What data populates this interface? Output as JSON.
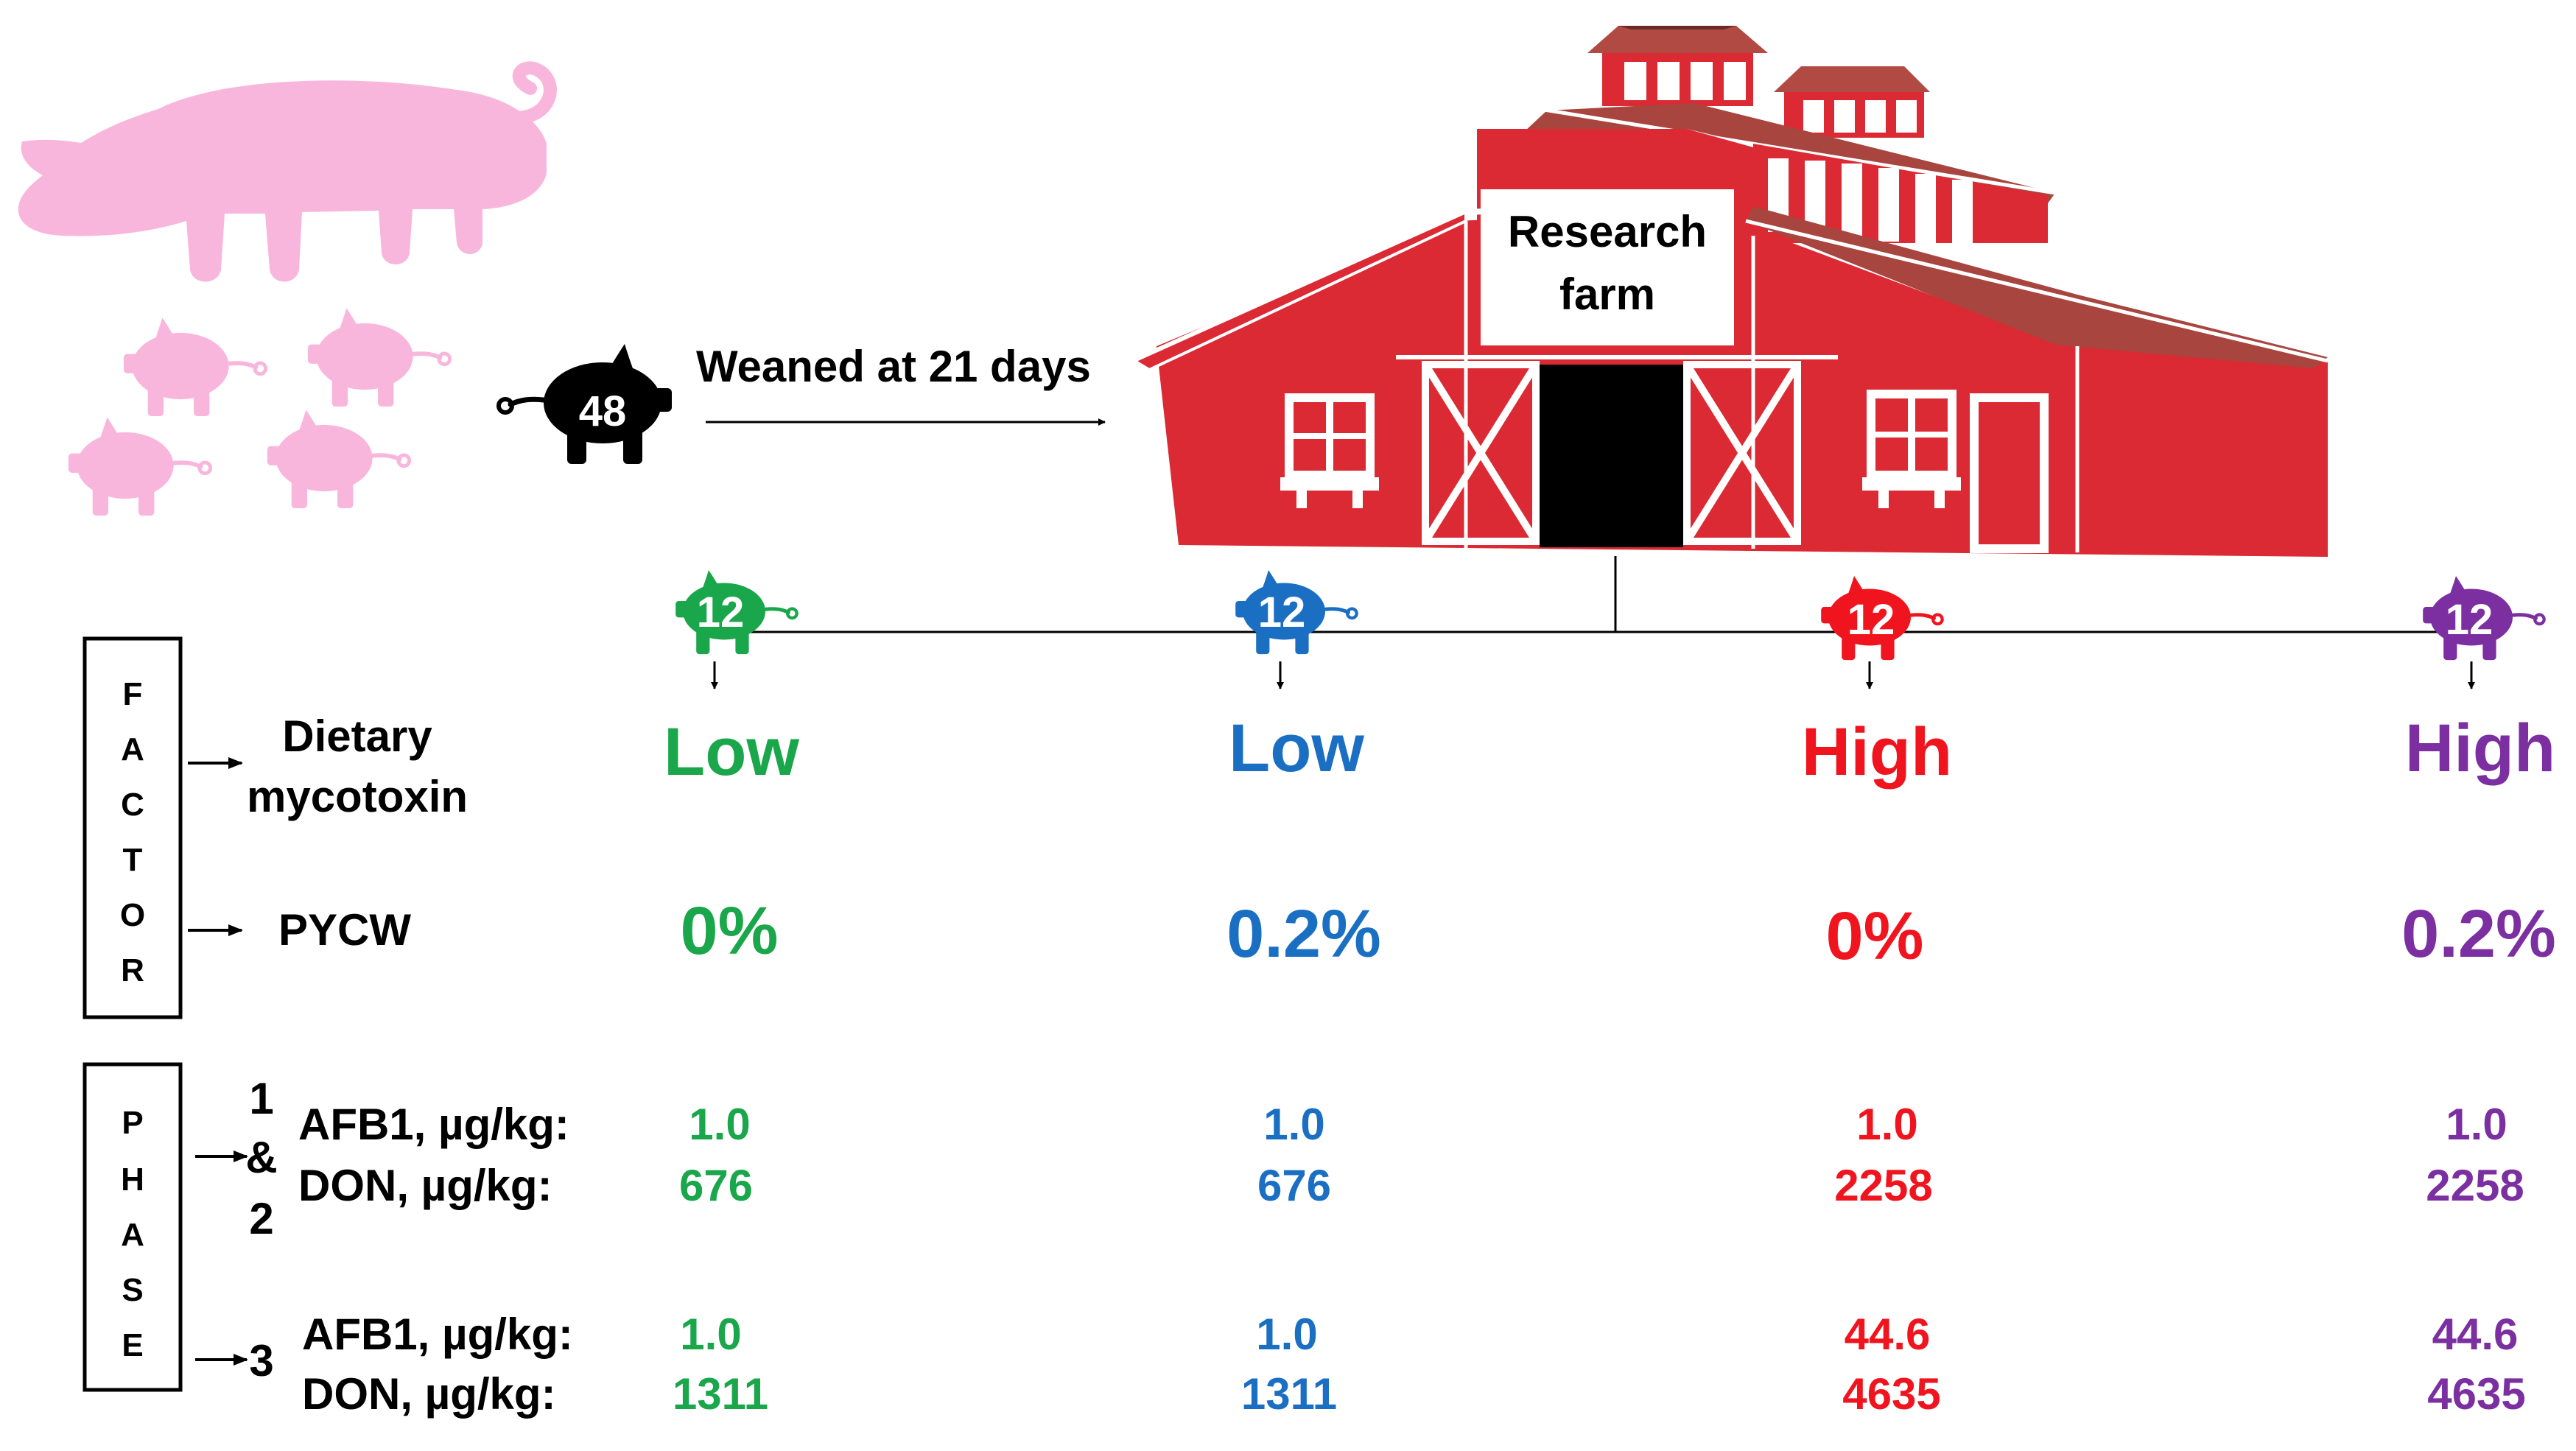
{
  "farm": {
    "label_line1": "Research",
    "label_line2": "farm"
  },
  "start": {
    "pig_count": "48",
    "weaning_label": "Weaned at 21 days"
  },
  "groups": [
    {
      "count": "12",
      "mycotoxin": "Low",
      "pycw": "0%",
      "phase12_afb1": "1.0",
      "phase12_don": "676",
      "phase3_afb1": "1.0",
      "phase3_don": "1311",
      "color": "#1aa64a"
    },
    {
      "count": "12",
      "mycotoxin": "Low",
      "pycw": "0.2%",
      "phase12_afb1": "1.0",
      "phase12_don": "676",
      "phase3_afb1": "1.0",
      "phase3_don": "1311",
      "color": "#1b6fc2"
    },
    {
      "count": "12",
      "mycotoxin": "High",
      "pycw": "0%",
      "phase12_afb1": "1.0",
      "phase12_don": "2258",
      "phase3_afb1": "44.6",
      "phase3_don": "4635",
      "color": "#f0141e"
    },
    {
      "count": "12",
      "mycotoxin": "High",
      "pycw": "0.2%",
      "phase12_afb1": "1.0",
      "phase12_don": "2258",
      "phase3_afb1": "44.6",
      "phase3_don": "4635",
      "color": "#7b2fa0"
    }
  ],
  "factor": {
    "letters": [
      "F",
      "A",
      "C",
      "T",
      "O",
      "R"
    ],
    "dietary_line1": "Dietary",
    "dietary_line2": "mycotoxin",
    "pycw": "PYCW"
  },
  "phase": {
    "letters": [
      "P",
      "H",
      "A",
      "S",
      "E"
    ],
    "p12_parts": [
      "1",
      "&",
      "2"
    ],
    "p3": "3",
    "afb1_label": "AFB1, µg/kg:",
    "don_label": "DON, µg/kg:"
  },
  "colors": {
    "barn_red": "#db2a33",
    "barn_roof": "#a8453f",
    "decor_pink": "#f9b6dc",
    "start_pig": "#000000"
  }
}
